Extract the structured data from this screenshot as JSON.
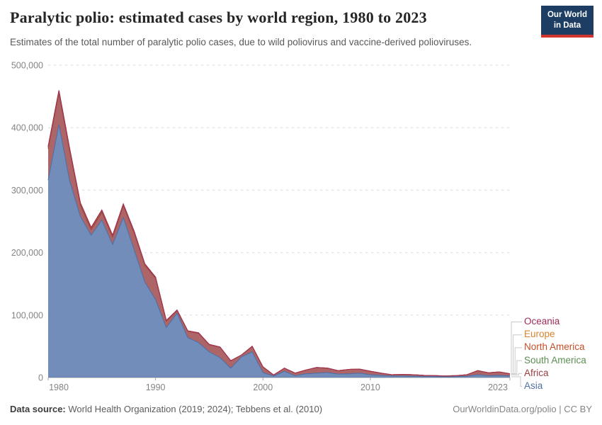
{
  "header": {
    "title": "Paralytic polio: estimated cases by world region, 1980 to 2023",
    "subtitle": "Estimates of the total number of paralytic polio cases, due to wild poliovirus and vaccine-derived polioviruses.",
    "logo": {
      "line1": "Our World",
      "line2": "in Data",
      "bg_color": "#1d3d63",
      "accent_color": "#d0342c"
    }
  },
  "footer": {
    "source_label": "Data source:",
    "source_text": " World Health Organization (2019; 2024); Tebbens et al. (2010)",
    "link_text": "OurWorldinData.org/polio | CC BY"
  },
  "chart_data": {
    "type": "area",
    "stacked": true,
    "title": "Paralytic polio: estimated cases by world region, 1980 to 2023",
    "xlabel": "",
    "ylabel": "",
    "ylim": [
      0,
      500000
    ],
    "grid": "horizontal-dashed",
    "legend_position": "right",
    "colors": {
      "grid": "#dadada",
      "axis": "#a9a9a9",
      "tick_text": "#848484",
      "legend_connector": "#c9c9c9"
    },
    "y_ticks": [
      {
        "label": "0",
        "value": 0
      },
      {
        "label": "100,000",
        "value": 100000
      },
      {
        "label": "200,000",
        "value": 200000
      },
      {
        "label": "300,000",
        "value": 300000
      },
      {
        "label": "400,000",
        "value": 400000
      },
      {
        "label": "500,000",
        "value": 500000
      }
    ],
    "x_ticks": [
      {
        "label": "1980",
        "year": 1980,
        "nudge": 15
      },
      {
        "label": "1990",
        "year": 1990,
        "nudge": 0
      },
      {
        "label": "2000",
        "year": 2000,
        "nudge": 0
      },
      {
        "label": "2010",
        "year": 2010,
        "nudge": 0
      },
      {
        "label": "2023",
        "year": 2023,
        "nudge": -17
      }
    ],
    "x": [
      1980,
      1981,
      1982,
      1983,
      1984,
      1985,
      1986,
      1987,
      1988,
      1989,
      1990,
      1991,
      1992,
      1993,
      1994,
      1995,
      1996,
      1997,
      1998,
      1999,
      2000,
      2001,
      2002,
      2003,
      2004,
      2005,
      2006,
      2007,
      2008,
      2009,
      2010,
      2011,
      2012,
      2013,
      2014,
      2015,
      2016,
      2017,
      2018,
      2019,
      2020,
      2021,
      2022,
      2023
    ],
    "series": [
      {
        "name": "Asia",
        "color": "#4F70A7",
        "values": [
          316000,
          405000,
          315000,
          258000,
          228000,
          252000,
          213000,
          256000,
          205000,
          153000,
          125000,
          80000,
          103000,
          64000,
          56000,
          41000,
          32000,
          15000,
          33000,
          41000,
          8000,
          2500,
          10000,
          3000,
          6000,
          7000,
          8000,
          5500,
          6000,
          7000,
          4500,
          3500,
          2500,
          2500,
          2000,
          1500,
          1500,
          1000,
          1500,
          2000,
          4500,
          3000,
          3500,
          2500
        ]
      },
      {
        "name": "Africa",
        "color": "#9A3E41",
        "values": [
          50000,
          50000,
          48000,
          18000,
          9000,
          13000,
          12000,
          19000,
          27000,
          27000,
          34000,
          10000,
          4000,
          10000,
          15000,
          11500,
          16500,
          11700,
          2800,
          8800,
          8900,
          1500,
          5000,
          4000,
          6000,
          9000,
          7000,
          5500,
          7000,
          6500,
          5500,
          3500,
          2000,
          2500,
          2500,
          2000,
          1500,
          1500,
          1500,
          2500,
          6500,
          4500,
          5500,
          3500
        ]
      },
      {
        "name": "South America",
        "color": "#5B8F52",
        "values": [
          2500,
          3000,
          2500,
          2500,
          2200,
          2200,
          2000,
          2200,
          2000,
          1500,
          1500,
          1000,
          800,
          600,
          500,
          400,
          300,
          200,
          150,
          100,
          80,
          60,
          50,
          40,
          40,
          50,
          40,
          30,
          30,
          30,
          25,
          25,
          20,
          20,
          20,
          20,
          20,
          20,
          20,
          20,
          40,
          30,
          20,
          20
        ]
      },
      {
        "name": "North America",
        "color": "#C44E27",
        "values": [
          300,
          250,
          200,
          150,
          120,
          100,
          80,
          60,
          40,
          30,
          20,
          15,
          10,
          8,
          6,
          5,
          4,
          3,
          3,
          2,
          2,
          2,
          2,
          2,
          2,
          2,
          2,
          2,
          2,
          2,
          2,
          2,
          2,
          2,
          2,
          2,
          2,
          2,
          2,
          2,
          2,
          2,
          2,
          2
        ]
      },
      {
        "name": "Europe",
        "color": "#D9842E",
        "values": [
          1200,
          1300,
          1100,
          1000,
          900,
          800,
          700,
          600,
          500,
          400,
          350,
          300,
          250,
          200,
          150,
          120,
          100,
          80,
          60,
          50,
          30,
          20,
          15,
          12,
          10,
          10,
          10,
          10,
          10,
          10,
          10,
          10,
          10,
          10,
          10,
          10,
          10,
          10,
          10,
          10,
          15,
          12,
          10,
          10
        ]
      },
      {
        "name": "Oceania",
        "color": "#9D2C5A",
        "values": [
          100,
          80,
          70,
          60,
          50,
          45,
          40,
          35,
          30,
          25,
          20,
          15,
          12,
          10,
          8,
          6,
          5,
          4,
          3,
          3,
          2,
          2,
          2,
          2,
          2,
          2,
          2,
          2,
          2,
          2,
          1,
          1,
          1,
          1,
          1,
          1,
          1,
          1,
          1,
          1,
          2,
          2,
          1,
          1
        ]
      }
    ],
    "legend_order_top_to_bottom": [
      "Oceania",
      "Europe",
      "North America",
      "South America",
      "Africa",
      "Asia"
    ]
  }
}
